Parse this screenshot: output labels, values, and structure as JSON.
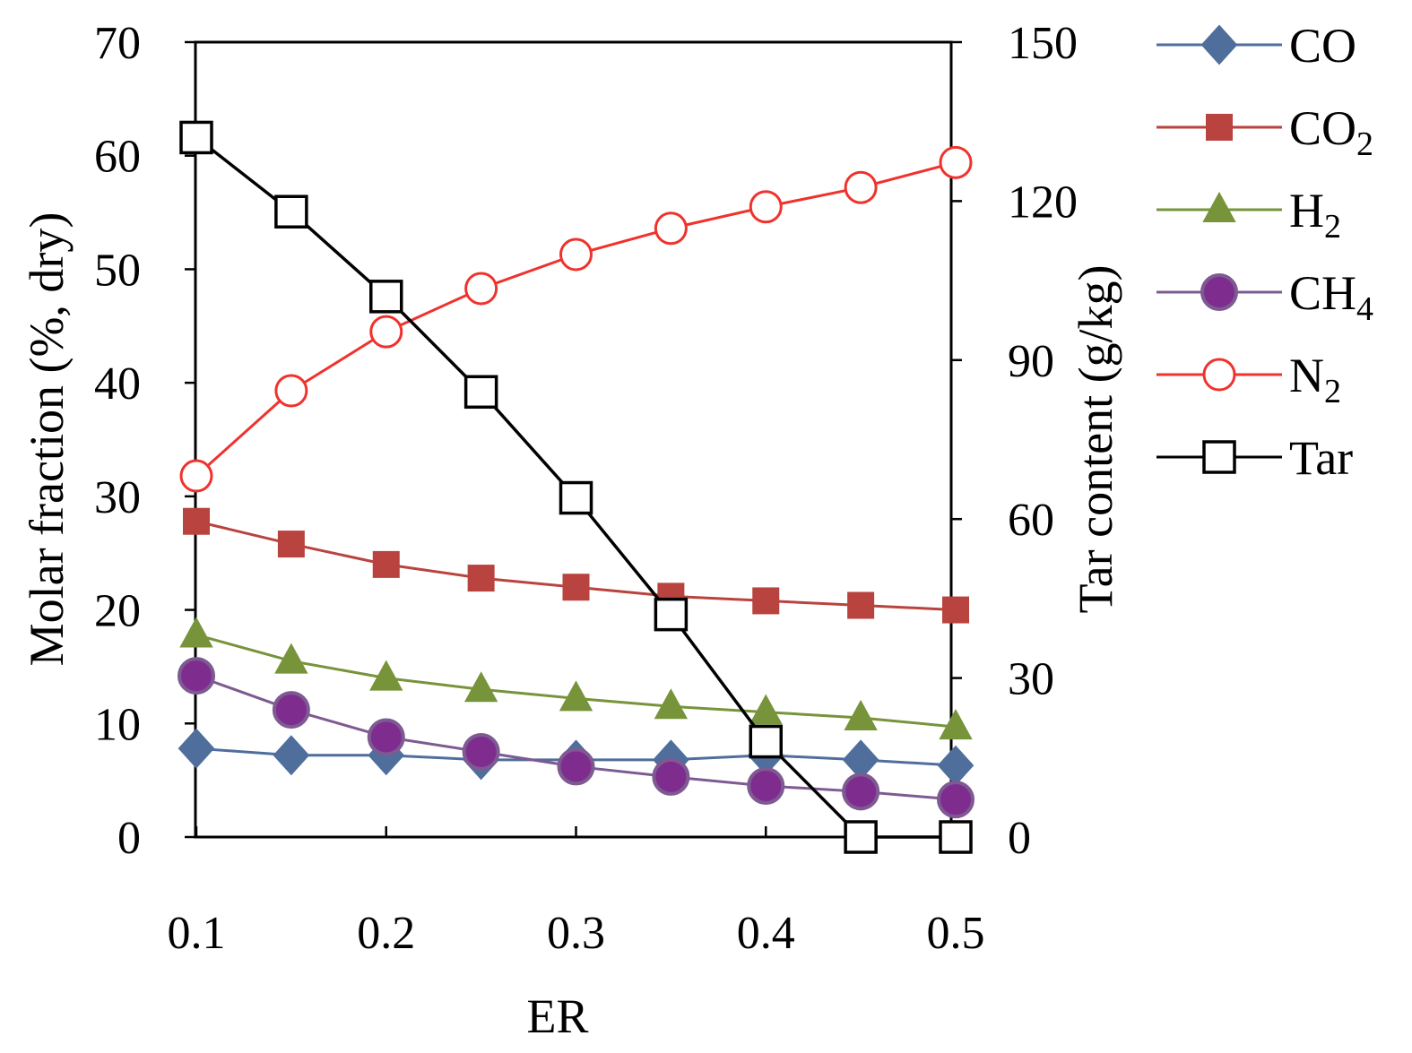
{
  "chart_data": {
    "type": "line",
    "xlabel": "ER",
    "ylabel": "Molar fraction (%, dry)",
    "y2label": "Tar content (g/kg)",
    "xlim": [
      0.1,
      0.5
    ],
    "ylim": [
      0,
      70
    ],
    "y2lim": [
      0,
      150
    ],
    "x_ticks": [
      "0.1",
      "0.2",
      "0.3",
      "0.4",
      "0.5"
    ],
    "y_ticks": [
      "0",
      "10",
      "20",
      "30",
      "40",
      "50",
      "60",
      "70"
    ],
    "y2_ticks": [
      "0",
      "30",
      "60",
      "90",
      "120",
      "150"
    ],
    "x": [
      0.1,
      0.15,
      0.2,
      0.25,
      0.3,
      0.35,
      0.4,
      0.45,
      0.5
    ],
    "legend_position": "right",
    "series": [
      {
        "key": "co",
        "name": "CO",
        "sub": "",
        "axis": "left",
        "marker": "diamond",
        "color": "#4F6E9C",
        "fill": "#4F6E9C",
        "values": [
          7.8,
          7.2,
          7.2,
          6.8,
          6.8,
          6.8,
          7.2,
          6.8,
          6.3
        ]
      },
      {
        "key": "co2",
        "name": "CO",
        "sub": "2",
        "axis": "left",
        "marker": "square",
        "color": "#B9433E",
        "fill": "#B9433E",
        "values": [
          27.8,
          25.8,
          24.0,
          22.8,
          22.0,
          21.2,
          20.8,
          20.4,
          20.0
        ]
      },
      {
        "key": "h2",
        "name": "H",
        "sub": "2",
        "axis": "left",
        "marker": "triangle",
        "color": "#77943B",
        "fill": "#77943B",
        "values": [
          17.8,
          15.5,
          14.0,
          13.0,
          12.2,
          11.5,
          11.0,
          10.5,
          9.7
        ]
      },
      {
        "key": "ch4",
        "name": "CH",
        "sub": "4",
        "axis": "left",
        "marker": "circle",
        "color": "#7D5A91",
        "fill": "#7E2D8E",
        "values": [
          14.2,
          11.2,
          8.8,
          7.5,
          6.2,
          5.3,
          4.5,
          4.0,
          3.3
        ]
      },
      {
        "key": "n2",
        "name": "N",
        "sub": "2",
        "axis": "left",
        "marker": "open-circle",
        "color": "#F0322D",
        "fill": "#ffffff",
        "values": [
          31.8,
          39.3,
          44.5,
          48.3,
          51.3,
          53.6,
          55.5,
          57.2,
          59.4
        ]
      },
      {
        "key": "tar",
        "name": "Tar",
        "sub": "",
        "axis": "right",
        "marker": "open-square",
        "color": "#000000",
        "fill": "#ffffff",
        "values": [
          132,
          118,
          102,
          84,
          64,
          42,
          18,
          0,
          0
        ]
      }
    ]
  }
}
